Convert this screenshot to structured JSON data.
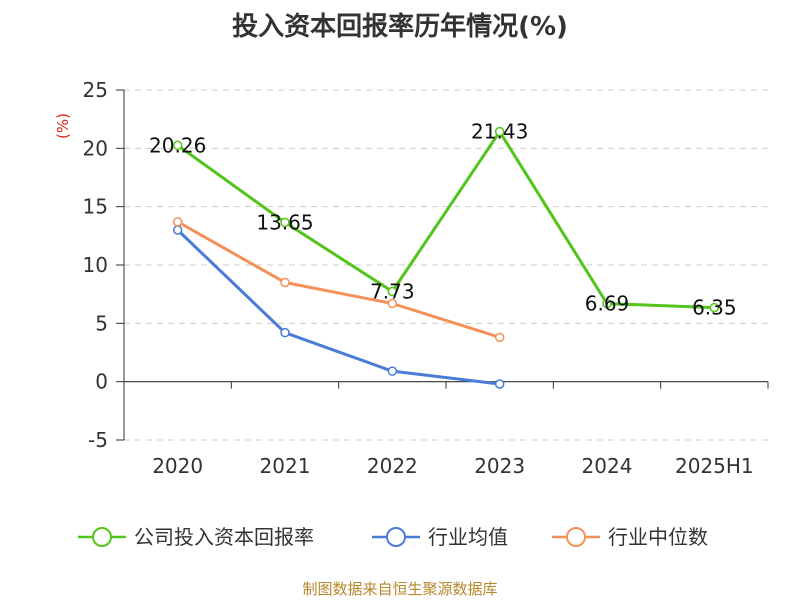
{
  "chart_data": {
    "type": "line",
    "title": "投入资本回报率历年情况(%)",
    "ylabel": "(%)",
    "categories": [
      "2020",
      "2021",
      "2022",
      "2023",
      "2024",
      "2025H1"
    ],
    "ylim": [
      -5,
      25
    ],
    "yticks": [
      "25",
      "20",
      "15",
      "10",
      "5",
      "0",
      "-5"
    ],
    "grid": true,
    "legend_position": "bottom",
    "series": [
      {
        "name": "公司投入资本回报率",
        "color": "#52c41a",
        "values": [
          20.26,
          13.65,
          7.73,
          21.43,
          6.69,
          6.35
        ],
        "labels": [
          "20.26",
          "13.65",
          "7.73",
          "21.43",
          "6.69",
          "6.35"
        ]
      },
      {
        "name": "行业均值",
        "color": "#4a7bd6",
        "values": [
          13.0,
          4.2,
          0.9,
          -0.2,
          null,
          null
        ]
      },
      {
        "name": "行业中位数",
        "color": "#f59058",
        "values": [
          13.7,
          8.5,
          6.7,
          3.8,
          null,
          null
        ]
      }
    ],
    "source": "制图数据来自恒生聚源数据库"
  }
}
